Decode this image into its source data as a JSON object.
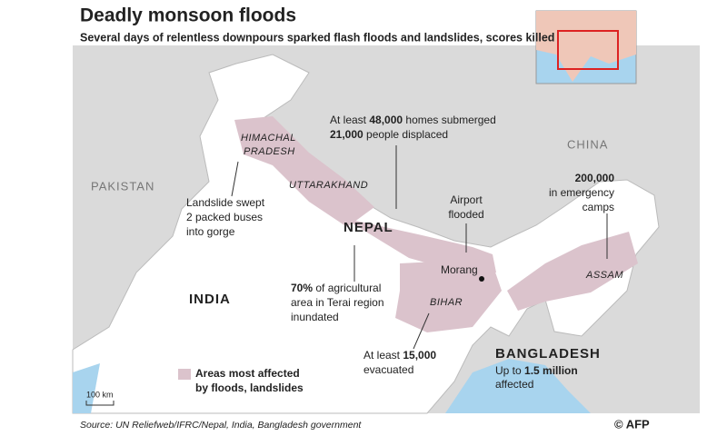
{
  "header": {
    "title": "Deadly monsoon floods",
    "subtitle": "Several days of relentless downpours sparked flash floods and landslides, scores killed"
  },
  "countries": [
    "PAKISTAN",
    "INDIA",
    "NEPAL",
    "CHINA",
    "BANGLADESH"
  ],
  "regions": [
    [
      "HIMACHAL",
      "PRADESH"
    ],
    [
      "UTTARAKHAND"
    ],
    [
      "BIHAR"
    ],
    [
      "ASSAM"
    ]
  ],
  "city": "Morang",
  "annotations": [
    {
      "lines": [
        [
          "Landslide swept"
        ],
        [
          "2 packed buses"
        ],
        [
          "into gorge"
        ]
      ]
    },
    {
      "lines": [
        [
          "At least ",
          "48,000",
          " homes submerged"
        ],
        [
          "21,000",
          " people displaced"
        ]
      ]
    },
    {
      "lines": [
        [
          "Airport"
        ],
        [
          "flooded"
        ]
      ]
    },
    {
      "lines": [
        [
          "200,000"
        ],
        [
          "in emergency"
        ],
        [
          "camps"
        ]
      ]
    },
    {
      "lines": [
        [
          "70%",
          " of agricultural"
        ],
        [
          "area in Terai region"
        ],
        [
          "inundated"
        ]
      ]
    },
    {
      "lines": [
        [
          "At least ",
          "15,000"
        ],
        [
          "evacuated"
        ]
      ]
    },
    {
      "lines": [
        [
          "Up to ",
          "1.5 million"
        ],
        [
          "affected"
        ]
      ]
    }
  ],
  "legend": [
    "Areas most affected",
    "by floods, landslides"
  ],
  "scale": "100 km",
  "source": "Source: UN Reliefweb/IFRC/Nepal, India, Bangladesh government",
  "credit": "© AFP"
}
